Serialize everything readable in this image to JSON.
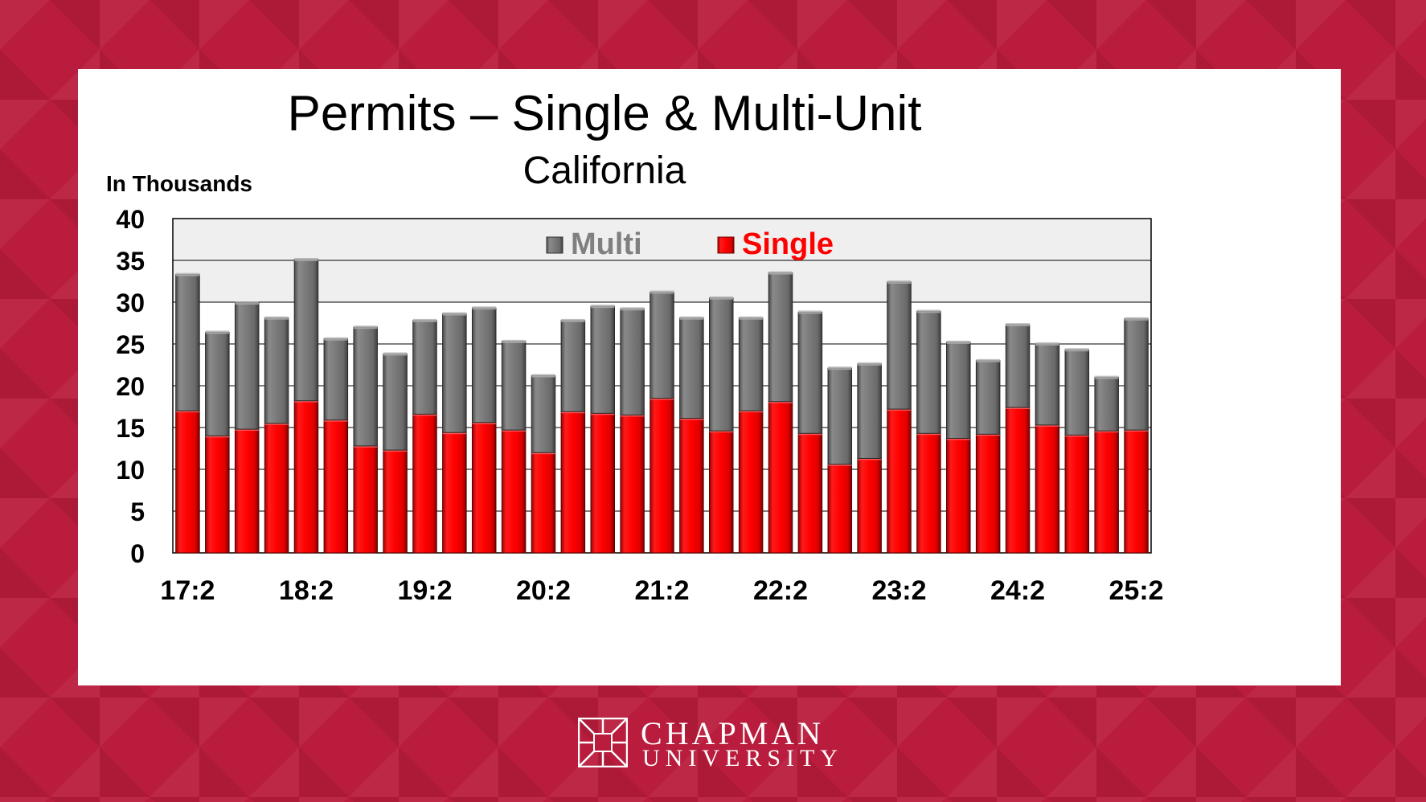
{
  "chart_data": {
    "type": "bar",
    "stacked": true,
    "title": "Permits – Single & Multi-Unit",
    "subtitle": "California",
    "ylabel": "In Thousands",
    "ylim": [
      0,
      40
    ],
    "yticks": [
      0,
      5,
      10,
      15,
      20,
      25,
      30,
      35,
      40
    ],
    "xtick_labels": [
      "17:2",
      "",
      "",
      "",
      "18:2",
      "",
      "",
      "",
      "19:2",
      "",
      "",
      "",
      "20:2",
      "",
      "",
      "",
      "21:2",
      "",
      "",
      "",
      "22:2",
      "",
      "",
      "",
      "23:2",
      "",
      "",
      "",
      "24:2",
      "",
      "",
      "",
      "25:2"
    ],
    "grid": true,
    "legend_position": "top-center",
    "series": [
      {
        "name": "Single",
        "color": "#ff0000",
        "values": [
          17.0,
          14.0,
          14.8,
          15.5,
          18.2,
          15.9,
          12.8,
          12.3,
          16.6,
          14.4,
          15.6,
          14.7,
          12.0,
          16.9,
          16.7,
          16.5,
          18.5,
          16.1,
          14.6,
          17.0,
          18.1,
          14.3,
          10.6,
          11.3,
          17.2,
          14.3,
          13.7,
          14.2,
          17.4,
          15.3,
          14.1,
          14.6,
          14.7
        ]
      },
      {
        "name": "Multi",
        "color": "#808080",
        "values": [
          16.3,
          12.4,
          15.1,
          12.6,
          16.9,
          9.7,
          14.2,
          11.5,
          11.2,
          14.2,
          13.7,
          10.6,
          9.2,
          10.9,
          12.8,
          12.7,
          12.7,
          12.0,
          15.9,
          11.1,
          15.4,
          14.5,
          11.5,
          11.3,
          15.2,
          14.6,
          11.5,
          8.8,
          9.9,
          9.7,
          10.2,
          6.4,
          13.3
        ]
      }
    ]
  },
  "logo": {
    "line1": "CHAPMAN",
    "line2": "UNIVERSITY"
  }
}
